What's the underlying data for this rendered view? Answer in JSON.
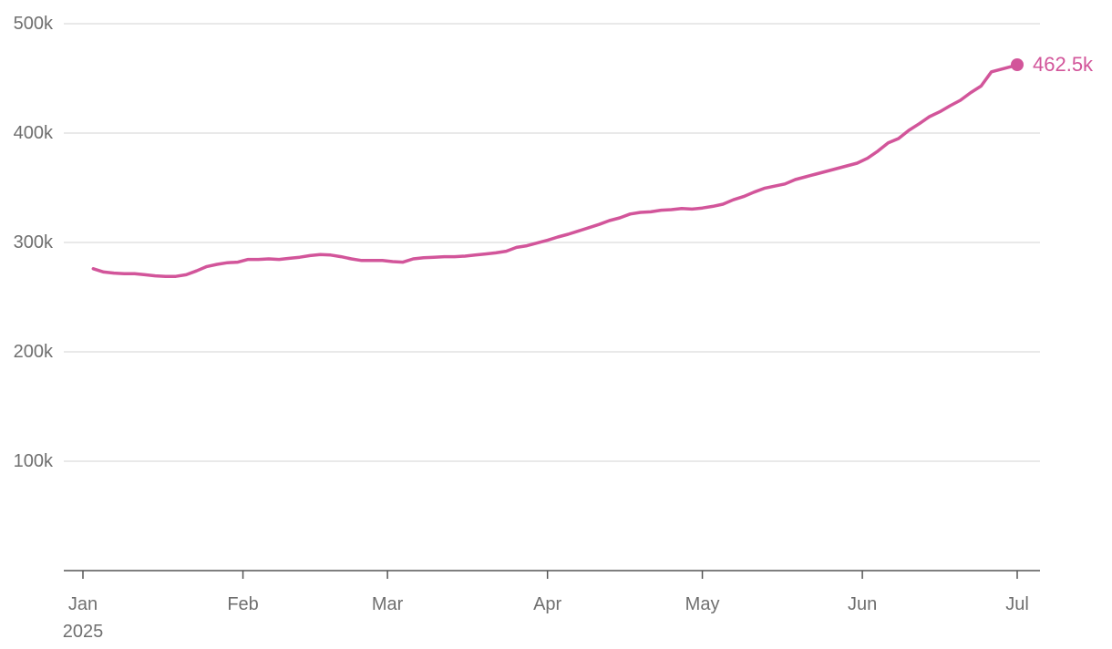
{
  "chart_data": {
    "type": "line",
    "title": "",
    "xlabel": "",
    "ylabel": "",
    "year_label": "2025",
    "y_ticks": [
      {
        "value": 100000,
        "label": "100k"
      },
      {
        "value": 200000,
        "label": "200k"
      },
      {
        "value": 300000,
        "label": "300k"
      },
      {
        "value": 400000,
        "label": "400k"
      },
      {
        "value": 500000,
        "label": "500k"
      }
    ],
    "x_ticks": [
      {
        "date": "2025-01-01",
        "label": "Jan"
      },
      {
        "date": "2025-02-01",
        "label": "Feb"
      },
      {
        "date": "2025-03-01",
        "label": "Mar"
      },
      {
        "date": "2025-04-01",
        "label": "Apr"
      },
      {
        "date": "2025-05-01",
        "label": "May"
      },
      {
        "date": "2025-06-01",
        "label": "Jun"
      },
      {
        "date": "2025-07-01",
        "label": "Jul"
      }
    ],
    "ylim": [
      0,
      500000
    ],
    "xlim": [
      "2024-12-25",
      "2025-07-01"
    ],
    "grid": true,
    "line_color": "#d2559a",
    "end_label": "462.5k",
    "series": [
      {
        "x": [
          "2025-01-03",
          "2025-01-05",
          "2025-01-07",
          "2025-01-09",
          "2025-01-11",
          "2025-01-13",
          "2025-01-15",
          "2025-01-17",
          "2025-01-19",
          "2025-01-21",
          "2025-01-23",
          "2025-01-25",
          "2025-01-27",
          "2025-01-29",
          "2025-01-31",
          "2025-02-02",
          "2025-02-04",
          "2025-02-06",
          "2025-02-08",
          "2025-02-10",
          "2025-02-12",
          "2025-02-14",
          "2025-02-16",
          "2025-02-18",
          "2025-02-20",
          "2025-02-22",
          "2025-02-24",
          "2025-02-26",
          "2025-02-28",
          "2025-03-02",
          "2025-03-04",
          "2025-03-06",
          "2025-03-08",
          "2025-03-10",
          "2025-03-12",
          "2025-03-14",
          "2025-03-16",
          "2025-03-18",
          "2025-03-20",
          "2025-03-22",
          "2025-03-24",
          "2025-03-26",
          "2025-03-28",
          "2025-03-30",
          "2025-04-01",
          "2025-04-03",
          "2025-04-05",
          "2025-04-07",
          "2025-04-09",
          "2025-04-11",
          "2025-04-13",
          "2025-04-15",
          "2025-04-17",
          "2025-04-19",
          "2025-04-21",
          "2025-04-23",
          "2025-04-25",
          "2025-04-27",
          "2025-04-29",
          "2025-05-01",
          "2025-05-03",
          "2025-05-05",
          "2025-05-07",
          "2025-05-09",
          "2025-05-11",
          "2025-05-13",
          "2025-05-15",
          "2025-05-17",
          "2025-05-19",
          "2025-05-21",
          "2025-05-23",
          "2025-05-25",
          "2025-05-27",
          "2025-05-29",
          "2025-05-31",
          "2025-06-02",
          "2025-06-04",
          "2025-06-06",
          "2025-06-08",
          "2025-06-10",
          "2025-06-12",
          "2025-06-14",
          "2025-06-16",
          "2025-06-18",
          "2025-06-20",
          "2025-06-22",
          "2025-06-24",
          "2025-06-26",
          "2025-06-28",
          "2025-06-30",
          "2025-07-01"
        ],
        "values": [
          276000,
          273000,
          272000,
          271500,
          271500,
          270500,
          269500,
          269000,
          269000,
          270500,
          274000,
          278000,
          280000,
          281500,
          282000,
          284500,
          284500,
          285000,
          284500,
          285500,
          286500,
          288000,
          289000,
          288500,
          287000,
          285000,
          283500,
          283500,
          283500,
          282500,
          282000,
          285000,
          286000,
          286500,
          287000,
          287000,
          287500,
          288500,
          289500,
          290500,
          292000,
          295500,
          297000,
          299500,
          302000,
          305000,
          307500,
          310500,
          313500,
          316500,
          320000,
          322500,
          326000,
          327500,
          328000,
          329500,
          330000,
          331000,
          330500,
          331500,
          333000,
          335000,
          339000,
          342000,
          346000,
          349500,
          351500,
          353500,
          357500,
          360000,
          362500,
          365000,
          367500,
          370000,
          372500,
          377000,
          383500,
          391000,
          395000,
          402500,
          408500,
          415000,
          419500,
          425000,
          430000,
          437000,
          443000,
          456000,
          458500,
          461000,
          462500
        ]
      }
    ]
  }
}
